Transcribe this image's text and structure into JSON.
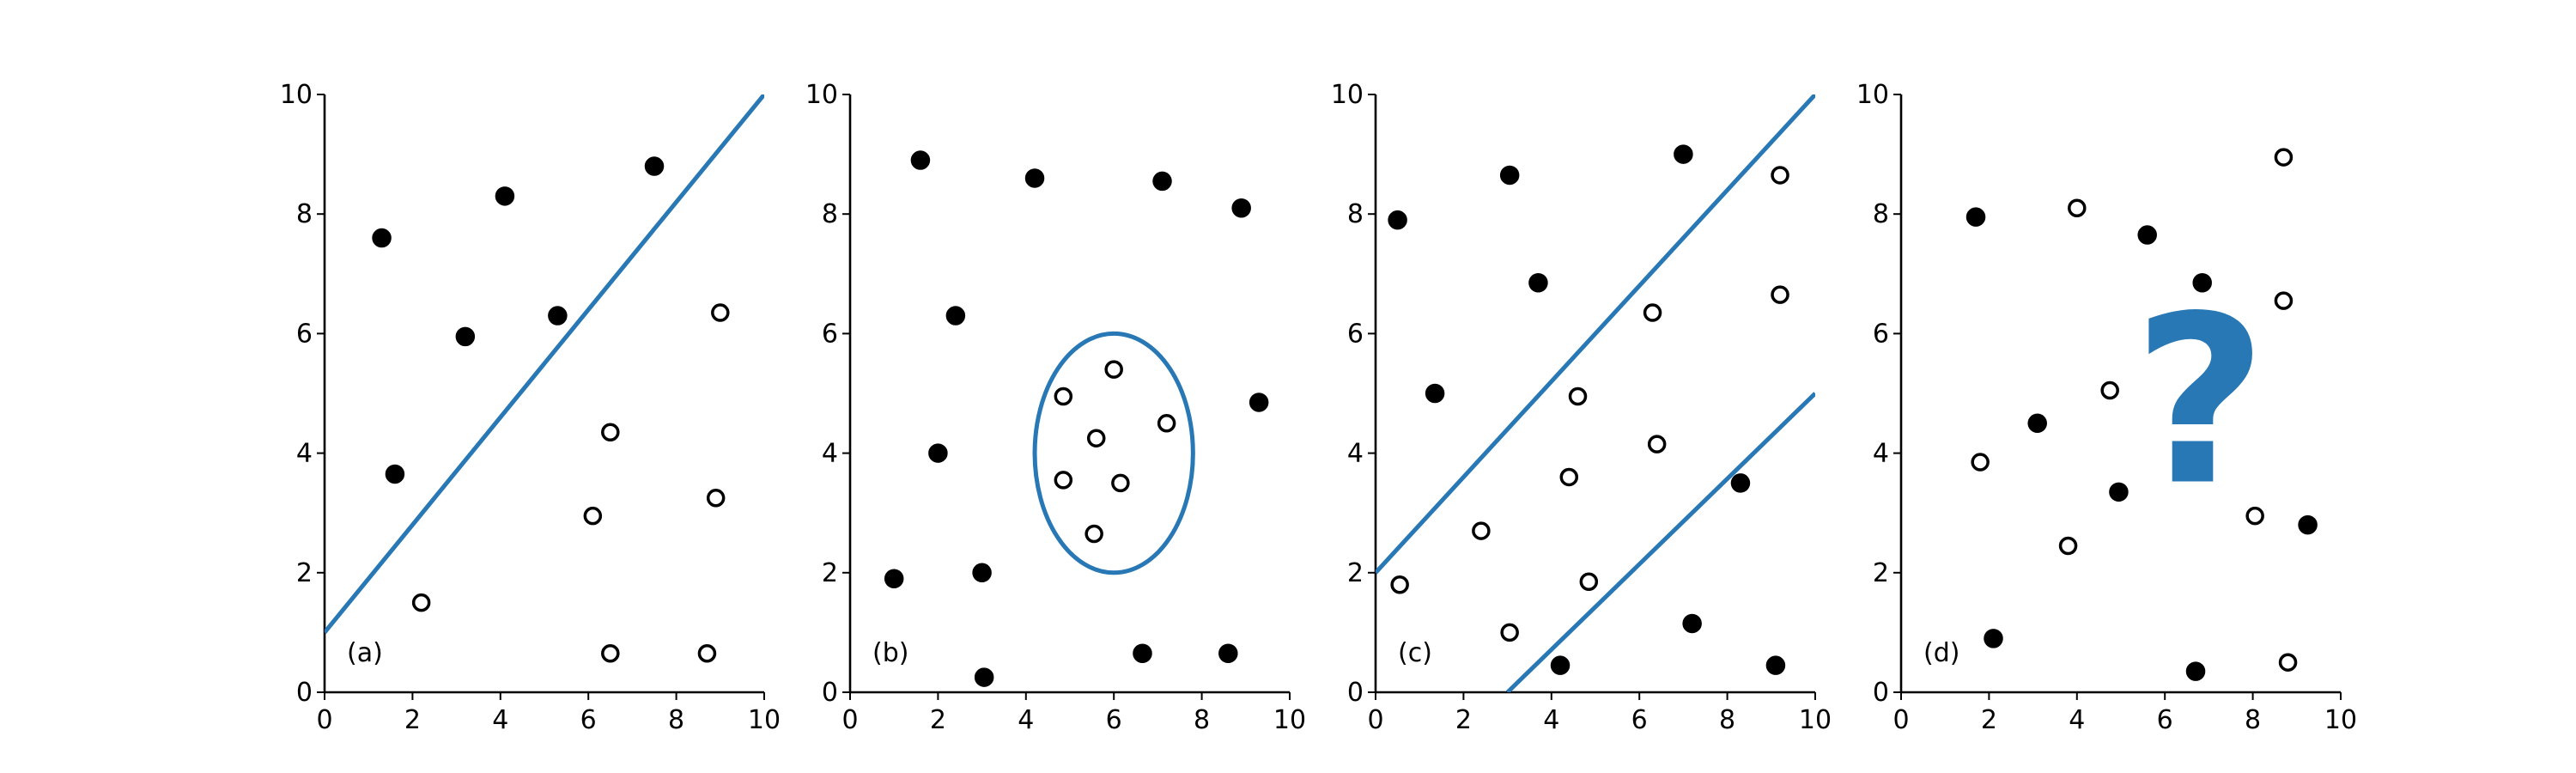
{
  "chart_data": [
    {
      "type": "scatter",
      "title": "",
      "label": "(a)",
      "xlim": [
        0,
        10
      ],
      "ylim": [
        0,
        10
      ],
      "xticks": [
        "0",
        "2",
        "4",
        "6",
        "8",
        "10"
      ],
      "yticks": [
        "0",
        "2",
        "4",
        "6",
        "8",
        "10"
      ],
      "series": [
        {
          "marker": "filled",
          "x": [
            1.3,
            1.6,
            3.2,
            4.1,
            5.3,
            7.5
          ],
          "y": [
            7.6,
            3.65,
            5.95,
            8.3,
            6.3,
            8.8
          ]
        },
        {
          "marker": "open",
          "x": [
            2.2,
            6.1,
            6.5,
            9.0,
            8.9,
            6.5,
            8.7
          ],
          "y": [
            1.5,
            2.95,
            4.35,
            6.35,
            3.25,
            0.65,
            0.65
          ]
        }
      ],
      "boundary": {
        "kind": "line",
        "x": [
          0,
          10
        ],
        "y": [
          1,
          10
        ]
      }
    },
    {
      "type": "scatter",
      "title": "",
      "label": "(b)",
      "xlim": [
        0,
        10
      ],
      "ylim": [
        0,
        10
      ],
      "xticks": [
        "0",
        "2",
        "4",
        "6",
        "8",
        "10"
      ],
      "yticks": [
        "0",
        "2",
        "4",
        "6",
        "8",
        "10"
      ],
      "series": [
        {
          "marker": "filled",
          "x": [
            1.6,
            4.2,
            7.1,
            8.9,
            2.4,
            2.0,
            9.3,
            1.0,
            3.0,
            3.05,
            6.65,
            8.6
          ],
          "y": [
            8.9,
            8.6,
            8.55,
            8.1,
            6.3,
            4.0,
            4.85,
            1.9,
            2.0,
            0.25,
            0.65,
            0.65
          ]
        },
        {
          "marker": "open",
          "x": [
            4.85,
            6.0,
            5.6,
            7.2,
            4.85,
            6.15,
            5.55
          ],
          "y": [
            4.95,
            5.4,
            4.25,
            4.5,
            3.55,
            3.5,
            2.65
          ]
        }
      ],
      "boundary": {
        "kind": "ellipse",
        "cx": 6,
        "cy": 4,
        "rx": 1.8,
        "ry": 2
      }
    },
    {
      "type": "scatter",
      "title": "",
      "label": "(c)",
      "xlim": [
        0,
        10
      ],
      "ylim": [
        0,
        10
      ],
      "xticks": [
        "0",
        "2",
        "4",
        "6",
        "8",
        "10"
      ],
      "yticks": [
        "0",
        "2",
        "4",
        "6",
        "8",
        "10"
      ],
      "series": [
        {
          "marker": "filled",
          "x": [
            0.5,
            3.05,
            7.0,
            3.7,
            1.35,
            8.3,
            7.2,
            4.2,
            9.1
          ],
          "y": [
            7.9,
            8.65,
            9.0,
            6.85,
            5.0,
            3.5,
            1.15,
            0.45,
            0.45
          ]
        },
        {
          "marker": "open",
          "x": [
            9.2,
            9.2,
            6.3,
            4.6,
            6.4,
            4.4,
            2.4,
            4.85,
            0.55,
            3.05
          ],
          "y": [
            8.65,
            6.65,
            6.35,
            4.95,
            4.15,
            3.6,
            2.7,
            1.85,
            1.8,
            1.0
          ]
        }
      ],
      "boundary": {
        "kind": "lines",
        "lines": [
          {
            "x": [
              0,
              10
            ],
            "y": [
              2,
              10
            ]
          },
          {
            "x": [
              3,
              10
            ],
            "y": [
              0,
              5
            ]
          }
        ]
      }
    },
    {
      "type": "scatter",
      "title": "",
      "label": "(d)",
      "xlim": [
        0,
        10
      ],
      "ylim": [
        0,
        10
      ],
      "xticks": [
        "0",
        "2",
        "4",
        "6",
        "8",
        "10"
      ],
      "yticks": [
        "0",
        "2",
        "4",
        "6",
        "8",
        "10"
      ],
      "series": [
        {
          "marker": "filled",
          "x": [
            1.7,
            5.6,
            6.85,
            3.1,
            4.95,
            9.25,
            2.1,
            6.7
          ],
          "y": [
            7.95,
            7.65,
            6.85,
            4.5,
            3.35,
            2.8,
            0.9,
            0.35
          ]
        },
        {
          "marker": "open",
          "x": [
            4.0,
            8.7,
            8.7,
            1.8,
            4.75,
            3.8,
            8.05,
            8.8
          ],
          "y": [
            8.1,
            8.95,
            6.55,
            3.85,
            5.05,
            2.45,
            2.95,
            0.5
          ]
        }
      ],
      "annotation": "?"
    }
  ],
  "colors": {
    "accent": "#2878b5",
    "marker": "#000000",
    "axis": "#000000"
  }
}
